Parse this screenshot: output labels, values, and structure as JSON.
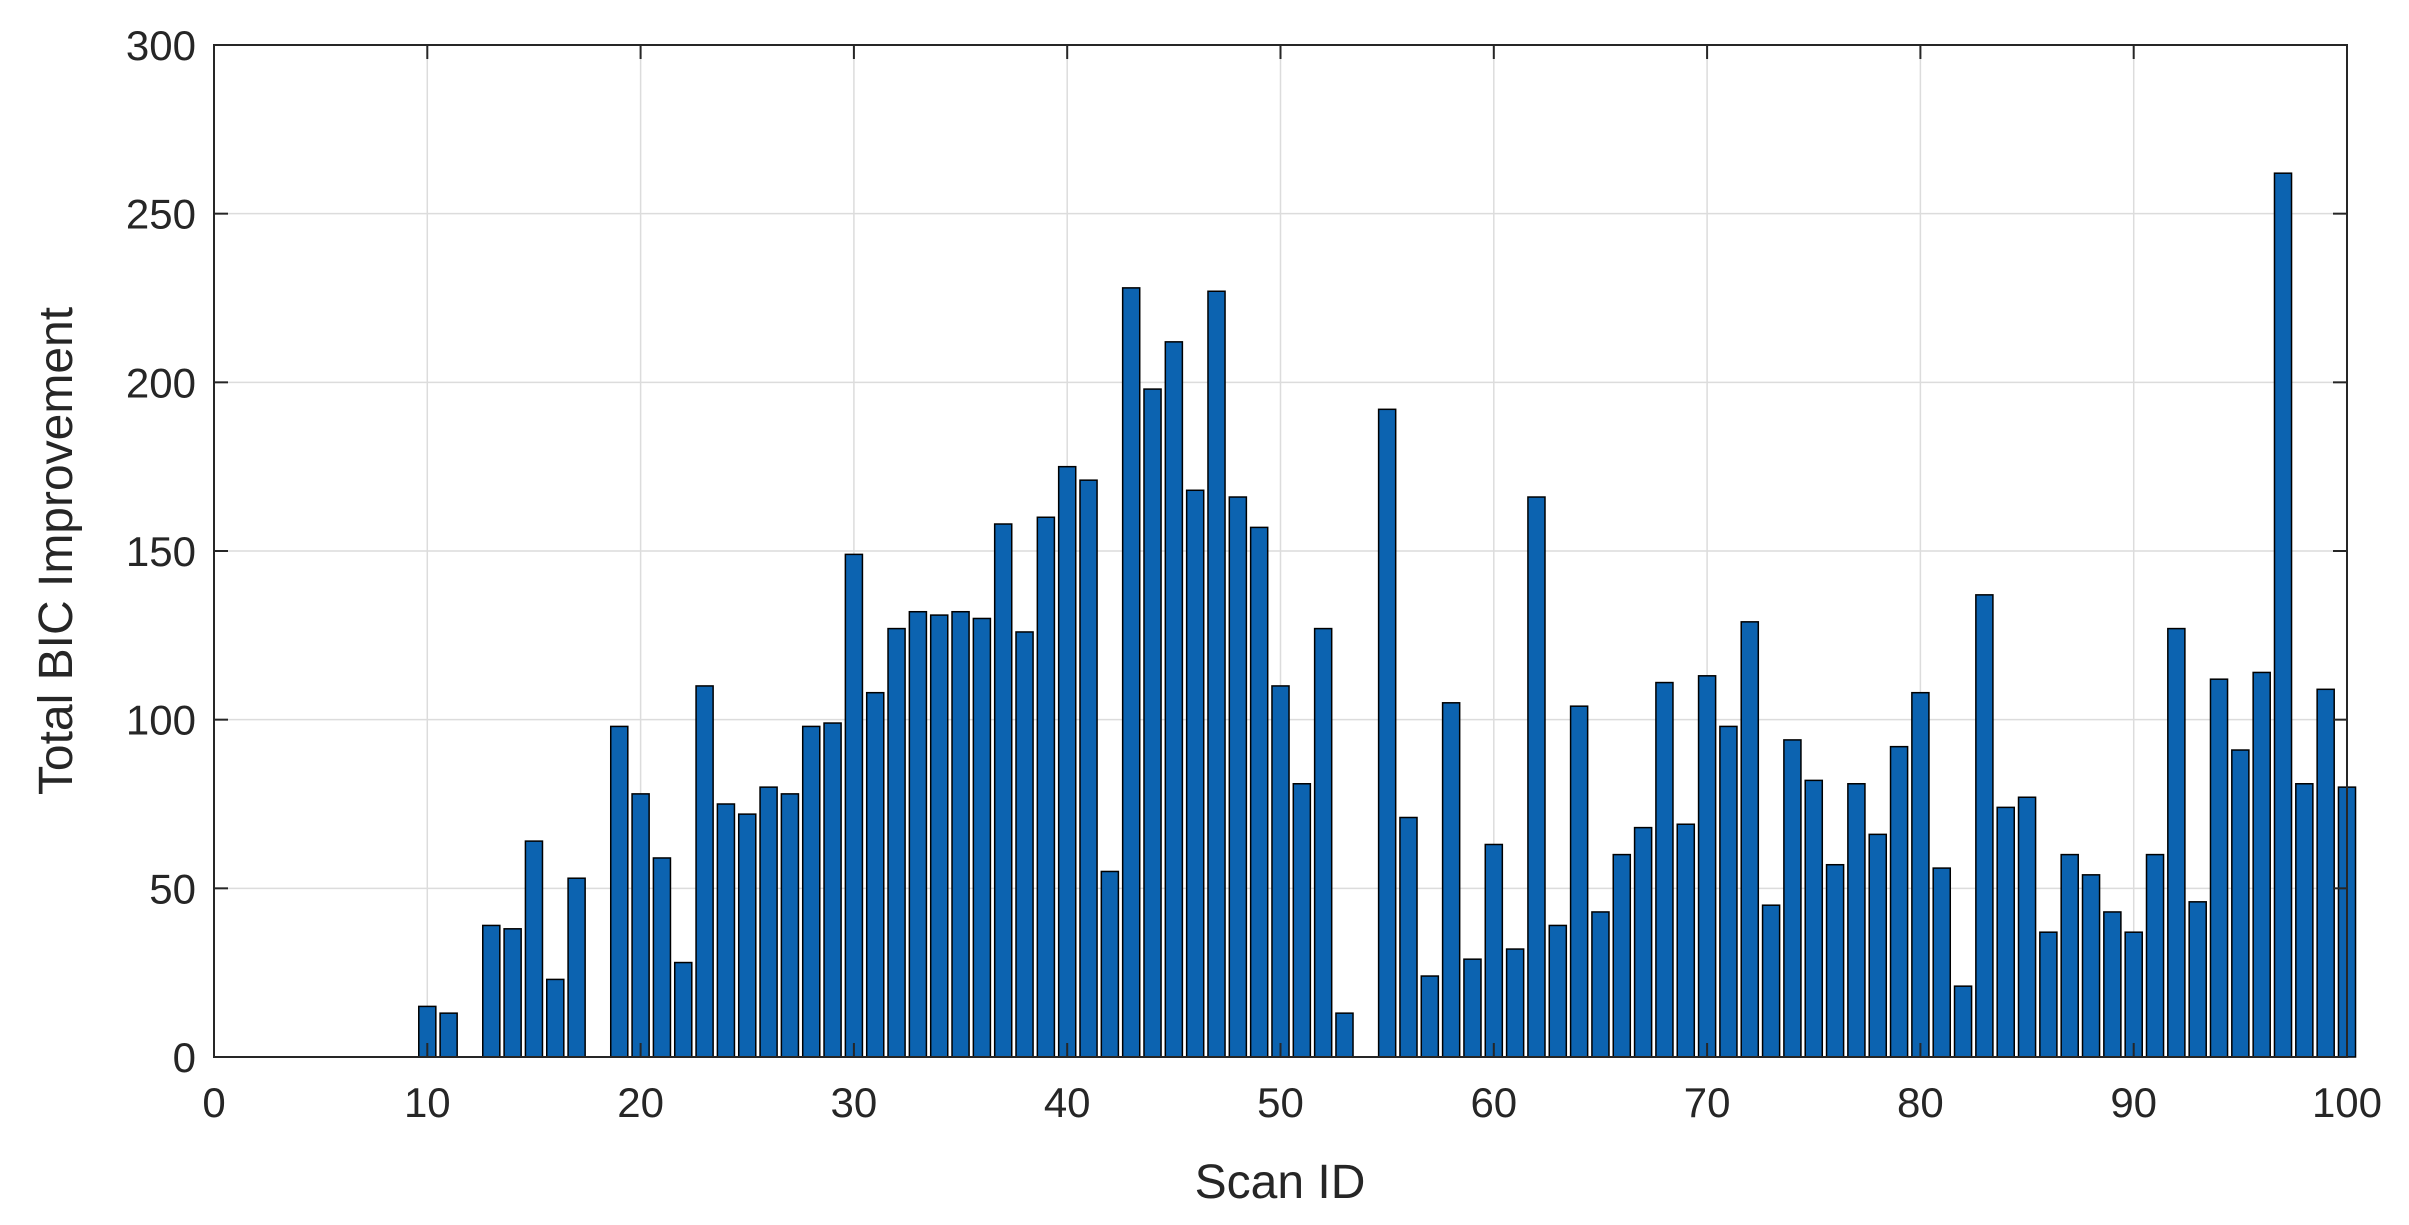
{
  "chart_data": {
    "type": "bar",
    "xlabel": "Scan ID",
    "ylabel": "Total BIC Improvement",
    "xlim": [
      0,
      100
    ],
    "ylim": [
      0,
      300
    ],
    "xticks": [
      0,
      10,
      20,
      30,
      40,
      50,
      60,
      70,
      80,
      90,
      100
    ],
    "yticks": [
      0,
      50,
      100,
      150,
      200,
      250,
      300
    ],
    "grid": true,
    "bar_color": "#0c63b0",
    "x": [
      1,
      2,
      3,
      4,
      5,
      6,
      7,
      8,
      9,
      10,
      11,
      12,
      13,
      14,
      15,
      16,
      17,
      18,
      19,
      20,
      21,
      22,
      23,
      24,
      25,
      26,
      27,
      28,
      29,
      30,
      31,
      32,
      33,
      34,
      35,
      36,
      37,
      38,
      39,
      40,
      41,
      42,
      43,
      44,
      45,
      46,
      47,
      48,
      49,
      50,
      51,
      52,
      53,
      54,
      55,
      56,
      57,
      58,
      59,
      60,
      61,
      62,
      63,
      64,
      65,
      66,
      67,
      68,
      69,
      70,
      71,
      72,
      73,
      74,
      75,
      76,
      77,
      78,
      79,
      80,
      81,
      82,
      83,
      84,
      85,
      86,
      87,
      88,
      89,
      90,
      91,
      92,
      93,
      94,
      95,
      96,
      97,
      98,
      99,
      100
    ],
    "values": [
      0,
      0,
      0,
      0,
      0,
      0,
      0,
      0,
      0,
      15,
      13,
      0,
      39,
      38,
      64,
      23,
      53,
      0,
      98,
      78,
      59,
      28,
      110,
      75,
      72,
      80,
      78,
      98,
      99,
      149,
      108,
      127,
      132,
      131,
      132,
      130,
      158,
      126,
      160,
      175,
      171,
      55,
      228,
      198,
      212,
      168,
      227,
      166,
      157,
      110,
      81,
      127,
      13,
      0,
      192,
      71,
      24,
      105,
      29,
      63,
      32,
      166,
      39,
      104,
      43,
      60,
      68,
      111,
      69,
      113,
      98,
      129,
      45,
      94,
      82,
      57,
      81,
      66,
      92,
      108,
      56,
      21,
      137,
      74,
      77,
      37,
      60,
      54,
      43,
      37,
      60,
      127,
      46,
      112,
      91,
      114,
      262,
      81,
      109,
      80
    ]
  }
}
